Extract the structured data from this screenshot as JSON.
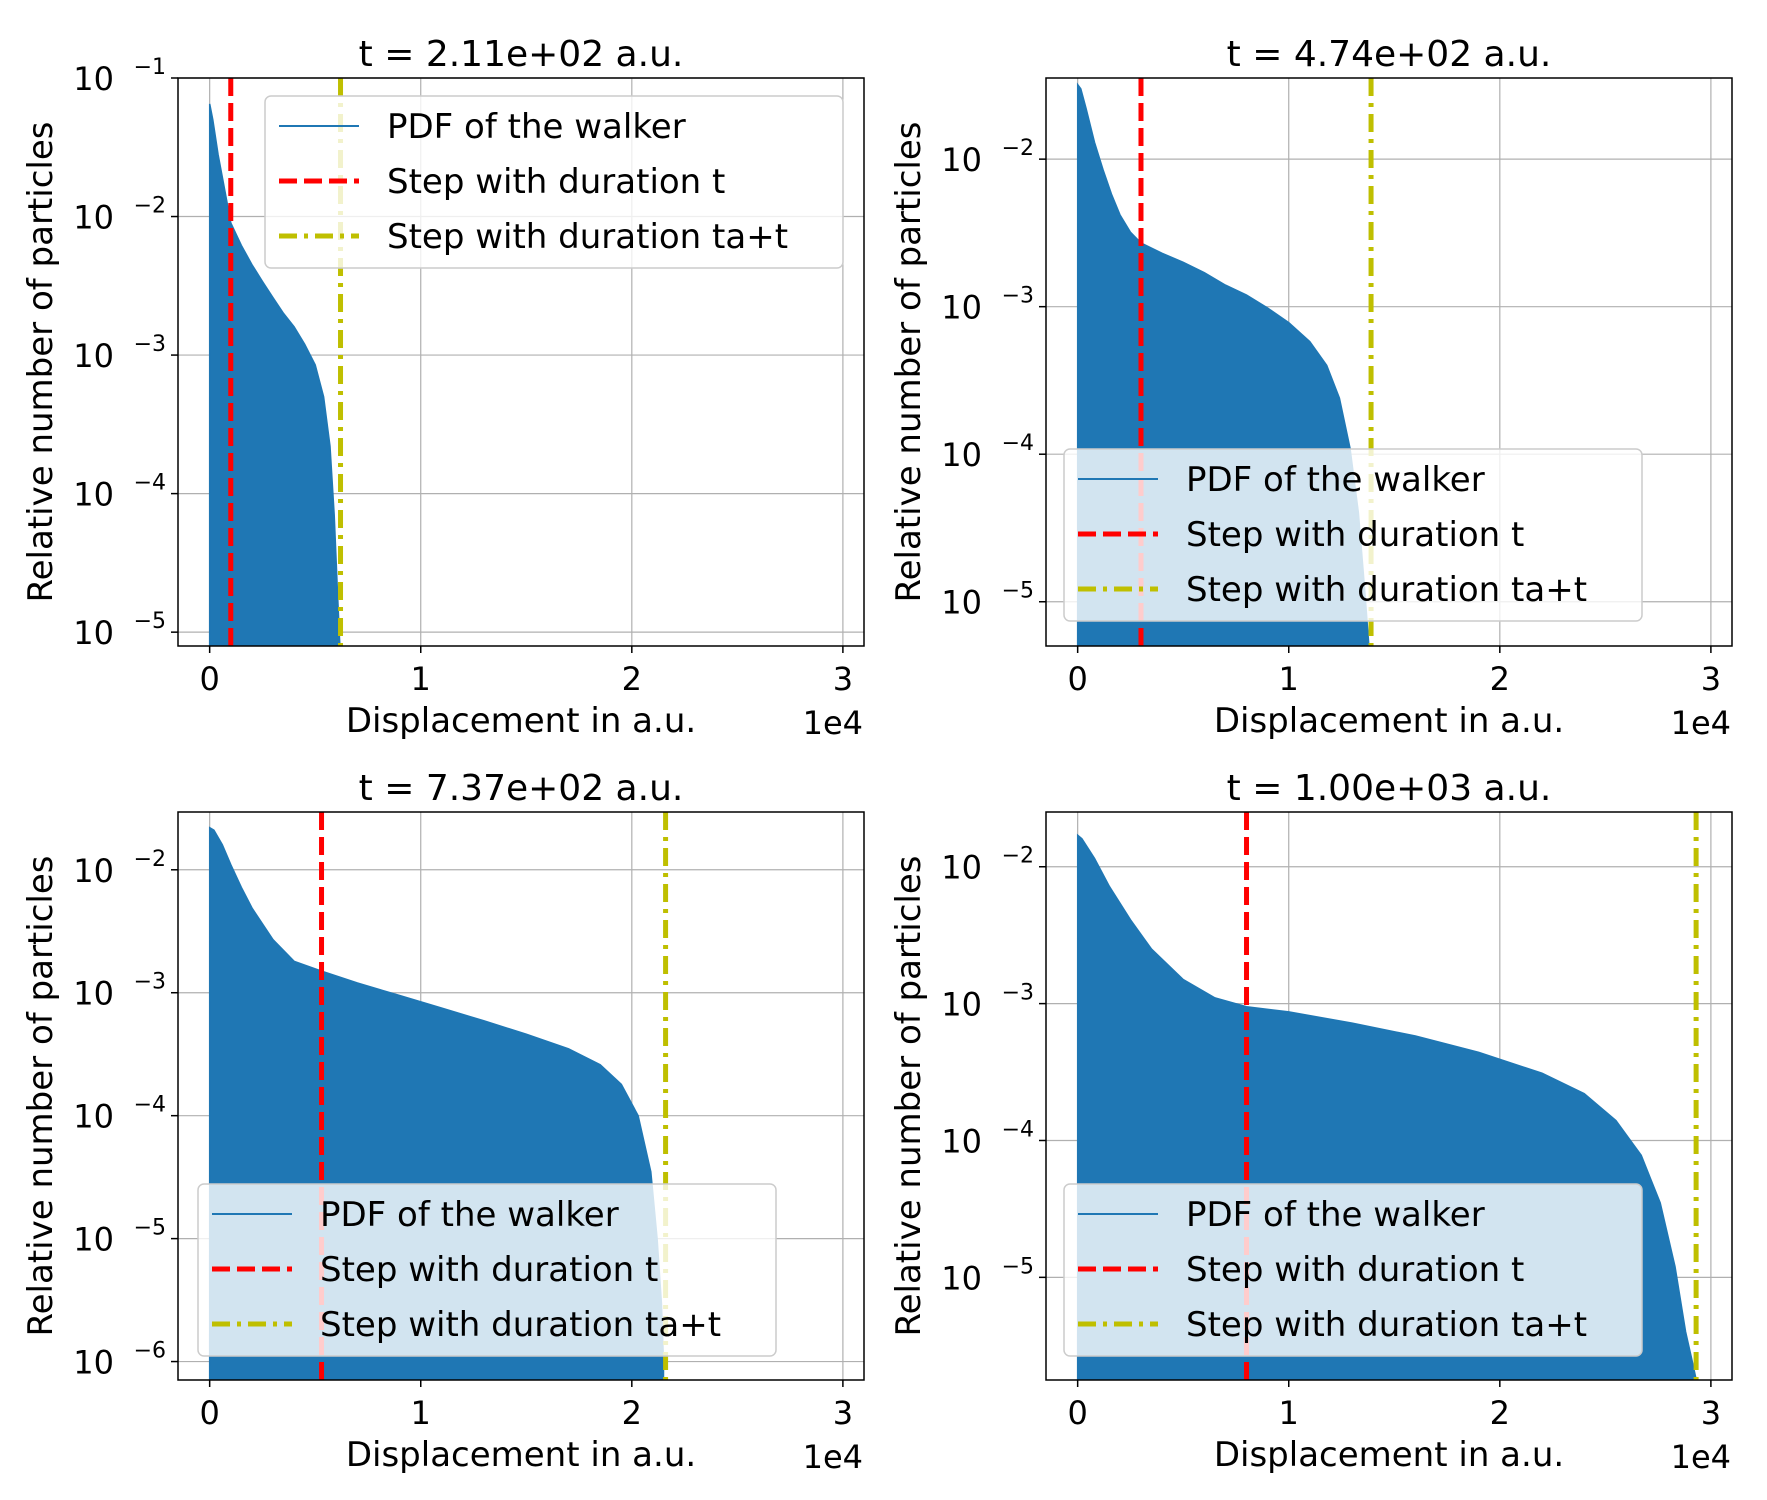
{
  "figure": {
    "background": "#ffffff"
  },
  "colors": {
    "pdf": "#1f77b4",
    "step_t": "#ff0000",
    "step_ta": "#bfbf00",
    "grid": "#b0b0b0"
  },
  "chart_data": [
    {
      "type": "area",
      "title": "t = 2.11e+02 a.u.",
      "xlabel": "Displacement in a.u.",
      "ylabel": "Relative number of particles",
      "x_offset_label": "1e4",
      "xscale": "linear",
      "yscale": "log",
      "xlim": [
        -1500,
        31000
      ],
      "ylim_exp": [
        -5.1,
        -1.0
      ],
      "xticks": [
        0,
        1,
        2,
        3
      ],
      "yticks": [
        {
          "base": "10",
          "exp": "−5",
          "e": -5
        },
        {
          "base": "10",
          "exp": "−4",
          "e": -4
        },
        {
          "base": "10",
          "exp": "−3",
          "e": -3
        },
        {
          "base": "10",
          "exp": "−2",
          "e": -2
        },
        {
          "base": "10",
          "exp": "−1",
          "e": -1
        }
      ],
      "grid": true,
      "legend_position": "upper right",
      "series": [
        {
          "name": "PDF of the walker",
          "kind": "filled-pdf",
          "x": [
            0,
            150,
            400,
            700,
            1000,
            1500,
            2000,
            2500,
            3000,
            3500,
            4000,
            4500,
            5000,
            5400,
            5700,
            5900,
            6050,
            6150,
            6250
          ],
          "y": [
            0.065,
            0.05,
            0.028,
            0.016,
            0.009,
            0.0062,
            0.0045,
            0.0034,
            0.0026,
            0.002,
            0.0016,
            0.0012,
            0.00085,
            0.0005,
            0.00022,
            7e-05,
            2e-05,
            9e-06,
            5e-06
          ]
        },
        {
          "name": "Step with duration t",
          "kind": "vline",
          "x": 1000
        },
        {
          "name": "Step with duration ta+t",
          "kind": "vline",
          "x": 6200
        }
      ]
    },
    {
      "type": "area",
      "title": "t = 4.74e+02 a.u.",
      "xlabel": "Displacement in a.u.",
      "ylabel": "Relative number of particles",
      "x_offset_label": "1e4",
      "xscale": "linear",
      "yscale": "log",
      "xlim": [
        -1500,
        31000
      ],
      "ylim_exp": [
        -5.3,
        -1.45
      ],
      "xticks": [
        0,
        1,
        2,
        3
      ],
      "yticks": [
        {
          "base": "10",
          "exp": "−5",
          "e": -5
        },
        {
          "base": "10",
          "exp": "−4",
          "e": -4
        },
        {
          "base": "10",
          "exp": "−3",
          "e": -3
        },
        {
          "base": "10",
          "exp": "−2",
          "e": -2
        }
      ],
      "grid": true,
      "legend_position": "lower right",
      "series": [
        {
          "name": "PDF of the walker",
          "kind": "filled-pdf",
          "x": [
            0,
            150,
            400,
            800,
            1200,
            1600,
            2000,
            2500,
            3000,
            4000,
            5000,
            6000,
            7000,
            8000,
            9000,
            10000,
            11000,
            11800,
            12400,
            12900,
            13300,
            13600,
            13800
          ],
          "y": [
            0.032,
            0.03,
            0.022,
            0.013,
            0.0085,
            0.0058,
            0.0042,
            0.0032,
            0.0027,
            0.0023,
            0.002,
            0.0017,
            0.0014,
            0.0012,
            0.00098,
            0.00078,
            0.00058,
            0.0004,
            0.00024,
            0.00011,
            4e-05,
            1.2e-05,
            5e-06
          ]
        },
        {
          "name": "Step with duration t",
          "kind": "vline",
          "x": 3000
        },
        {
          "name": "Step with duration ta+t",
          "kind": "vline",
          "x": 13900
        }
      ]
    },
    {
      "type": "area",
      "title": "t = 7.37e+02 a.u.",
      "xlabel": "Displacement in a.u.",
      "ylabel": "Relative number of particles",
      "x_offset_label": "1e4",
      "xscale": "linear",
      "yscale": "log",
      "xlim": [
        -1500,
        31000
      ],
      "ylim_exp": [
        -6.15,
        -1.53
      ],
      "xticks": [
        0,
        1,
        2,
        3
      ],
      "yticks": [
        {
          "base": "10",
          "exp": "−6",
          "e": -6
        },
        {
          "base": "10",
          "exp": "−5",
          "e": -5
        },
        {
          "base": "10",
          "exp": "−4",
          "e": -4
        },
        {
          "base": "10",
          "exp": "−3",
          "e": -3
        },
        {
          "base": "10",
          "exp": "−2",
          "e": -2
        }
      ],
      "grid": true,
      "legend_position": "lower left",
      "series": [
        {
          "name": "PDF of the walker",
          "kind": "filled-pdf",
          "x": [
            0,
            200,
            600,
            1000,
            1500,
            2000,
            3000,
            4000,
            5300,
            7000,
            9000,
            11000,
            13000,
            15000,
            17000,
            18500,
            19500,
            20300,
            20900,
            21200,
            21400,
            21500
          ],
          "y": [
            0.022,
            0.021,
            0.016,
            0.011,
            0.0072,
            0.0049,
            0.0027,
            0.0018,
            0.0015,
            0.0012,
            0.00095,
            0.00075,
            0.00059,
            0.00046,
            0.00035,
            0.00026,
            0.00018,
            0.0001,
            3.5e-05,
            1e-05,
            3e-06,
            1e-06
          ]
        },
        {
          "name": "Step with duration t",
          "kind": "vline",
          "x": 5300
        },
        {
          "name": "Step with duration ta+t",
          "kind": "vline",
          "x": 21600
        }
      ]
    },
    {
      "type": "area",
      "title": "t = 1.00e+03 a.u.",
      "xlabel": "Displacement in a.u.",
      "ylabel": "Relative number of particles",
      "x_offset_label": "1e4",
      "xscale": "linear",
      "yscale": "log",
      "xlim": [
        -1500,
        31000
      ],
      "ylim_exp": [
        -5.75,
        -1.6
      ],
      "xticks": [
        0,
        1,
        2,
        3
      ],
      "yticks": [
        {
          "base": "10",
          "exp": "−5",
          "e": -5
        },
        {
          "base": "10",
          "exp": "−4",
          "e": -4
        },
        {
          "base": "10",
          "exp": "−3",
          "e": -3
        },
        {
          "base": "10",
          "exp": "−2",
          "e": -2
        }
      ],
      "grid": true,
      "legend_position": "lower right",
      "series": [
        {
          "name": "PDF of the walker",
          "kind": "filled-pdf",
          "x": [
            0,
            200,
            800,
            1500,
            2500,
            3500,
            5000,
            6500,
            8000,
            10000,
            13000,
            16000,
            19000,
            22000,
            24000,
            25500,
            26700,
            27600,
            28300,
            28800,
            29100,
            29300
          ],
          "y": [
            0.017,
            0.016,
            0.0115,
            0.0072,
            0.0041,
            0.0025,
            0.0015,
            0.0011,
            0.00095,
            0.00087,
            0.00072,
            0.00058,
            0.00044,
            0.00031,
            0.00022,
            0.00014,
            7.8e-05,
            3.5e-05,
            1.2e-05,
            4e-06,
            2.5e-06,
            1.8e-06
          ]
        },
        {
          "name": "Step with duration t",
          "kind": "vline",
          "x": 8000
        },
        {
          "name": "Step with duration ta+t",
          "kind": "vline",
          "x": 29300
        }
      ]
    }
  ]
}
